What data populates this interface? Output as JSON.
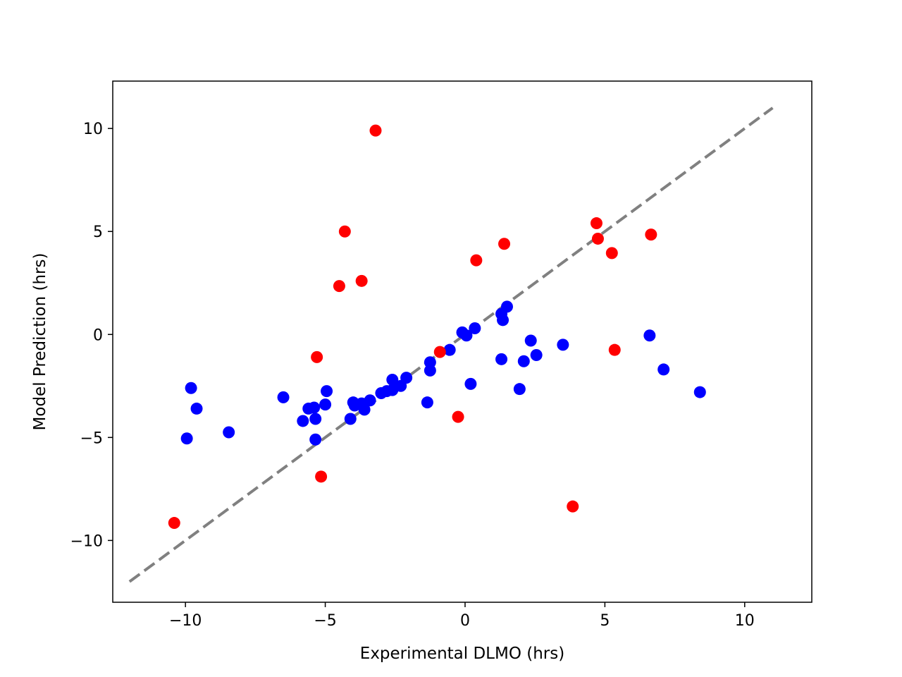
{
  "chart_data": {
    "type": "scatter",
    "title": "",
    "xlabel": "Experimental DLMO (hrs)",
    "ylabel": "Model Prediction (hrs)",
    "xlim": [
      -12.6,
      12.4
    ],
    "ylim": [
      -13,
      12.3
    ],
    "xticks": [
      -10,
      -5,
      0,
      5,
      10
    ],
    "yticks": [
      -10,
      -5,
      0,
      5,
      10
    ],
    "xtick_labels": [
      "−10",
      "−5",
      "0",
      "5",
      "10"
    ],
    "ytick_labels": [
      "−10",
      "−5",
      "0",
      "5",
      "10"
    ],
    "grid": false,
    "legend": "none",
    "reference_line": {
      "x": [
        -12,
        11
      ],
      "y": [
        -12,
        11
      ],
      "style": "dashed",
      "color": "#808080"
    },
    "series": [
      {
        "color": "#0000ff",
        "points": [
          [
            -9.8,
            -2.6
          ],
          [
            -9.6,
            -3.6
          ],
          [
            -9.95,
            -5.05
          ],
          [
            -8.45,
            -4.75
          ],
          [
            -6.5,
            -3.05
          ],
          [
            -5.8,
            -4.2
          ],
          [
            -5.6,
            -3.6
          ],
          [
            -5.4,
            -3.55
          ],
          [
            -5.35,
            -4.1
          ],
          [
            -5.35,
            -5.1
          ],
          [
            -4.95,
            -2.75
          ],
          [
            -5.0,
            -3.4
          ],
          [
            -4.1,
            -4.1
          ],
          [
            -4.0,
            -3.3
          ],
          [
            -3.95,
            -3.45
          ],
          [
            -3.7,
            -3.35
          ],
          [
            -3.6,
            -3.65
          ],
          [
            -3.4,
            -3.2
          ],
          [
            -3.0,
            -2.85
          ],
          [
            -2.8,
            -2.75
          ],
          [
            -2.6,
            -2.7
          ],
          [
            -2.6,
            -2.2
          ],
          [
            -2.3,
            -2.5
          ],
          [
            -2.1,
            -2.1
          ],
          [
            -1.35,
            -3.3
          ],
          [
            -1.25,
            -1.35
          ],
          [
            -1.25,
            -1.75
          ],
          [
            -0.55,
            -0.75
          ],
          [
            -0.1,
            0.1
          ],
          [
            0.05,
            -0.05
          ],
          [
            0.2,
            -2.4
          ],
          [
            0.35,
            0.3
          ],
          [
            1.3,
            -1.2
          ],
          [
            1.3,
            1.0
          ],
          [
            1.35,
            0.7
          ],
          [
            1.5,
            1.35
          ],
          [
            1.95,
            -2.65
          ],
          [
            2.1,
            -1.3
          ],
          [
            2.35,
            -0.3
          ],
          [
            2.55,
            -1.0
          ],
          [
            3.5,
            -0.5
          ],
          [
            6.6,
            -0.05
          ],
          [
            7.1,
            -1.7
          ],
          [
            8.4,
            -2.8
          ]
        ]
      },
      {
        "color": "#ff0000",
        "points": [
          [
            -10.4,
            -9.15
          ],
          [
            -5.3,
            -1.1
          ],
          [
            -5.15,
            -6.9
          ],
          [
            -4.5,
            2.35
          ],
          [
            -4.3,
            5.0
          ],
          [
            -3.7,
            2.6
          ],
          [
            -3.2,
            9.9
          ],
          [
            -0.9,
            -0.85
          ],
          [
            -0.25,
            -4.0
          ],
          [
            0.4,
            3.6
          ],
          [
            1.4,
            4.4
          ],
          [
            3.85,
            -8.35
          ],
          [
            4.7,
            5.4
          ],
          [
            4.75,
            4.65
          ],
          [
            5.25,
            3.95
          ],
          [
            5.35,
            -0.75
          ],
          [
            6.65,
            4.85
          ]
        ]
      }
    ]
  }
}
